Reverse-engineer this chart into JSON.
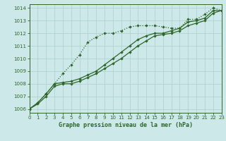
{
  "title": "Graphe pression niveau de la mer (hPa)",
  "bg_color": "#cce8e8",
  "grid_color": "#aacfcf",
  "line_color": "#2d6628",
  "xlim": [
    0,
    23
  ],
  "ylim": [
    1005.7,
    1014.3
  ],
  "xticks": [
    0,
    1,
    2,
    3,
    4,
    5,
    6,
    7,
    8,
    9,
    10,
    11,
    12,
    13,
    14,
    15,
    16,
    17,
    18,
    19,
    20,
    21,
    22,
    23
  ],
  "yticks": [
    1006,
    1007,
    1008,
    1009,
    1010,
    1011,
    1012,
    1013,
    1014
  ],
  "series_dotted": [
    1006.0,
    1006.5,
    1007.2,
    1008.0,
    1008.8,
    1009.5,
    1010.3,
    1011.3,
    1011.7,
    1012.0,
    1012.0,
    1012.2,
    1012.5,
    1012.6,
    1012.6,
    1012.6,
    1012.5,
    1012.4,
    1012.4,
    1013.1,
    1013.1,
    1013.5,
    1014.0,
    1013.8
  ],
  "series_solid1": [
    1006.0,
    1006.5,
    1007.2,
    1008.0,
    1008.1,
    1008.2,
    1008.4,
    1008.7,
    1009.0,
    1009.5,
    1010.0,
    1010.5,
    1011.0,
    1011.5,
    1011.8,
    1012.0,
    1012.0,
    1012.2,
    1012.4,
    1012.9,
    1013.0,
    1013.2,
    1013.8,
    1013.8
  ],
  "series_solid2": [
    1006.0,
    1006.4,
    1007.0,
    1007.8,
    1008.0,
    1008.0,
    1008.2,
    1008.5,
    1008.8,
    1009.2,
    1009.6,
    1010.0,
    1010.5,
    1011.0,
    1011.4,
    1011.8,
    1011.9,
    1012.0,
    1012.2,
    1012.6,
    1012.8,
    1013.0,
    1013.6,
    1013.8
  ]
}
